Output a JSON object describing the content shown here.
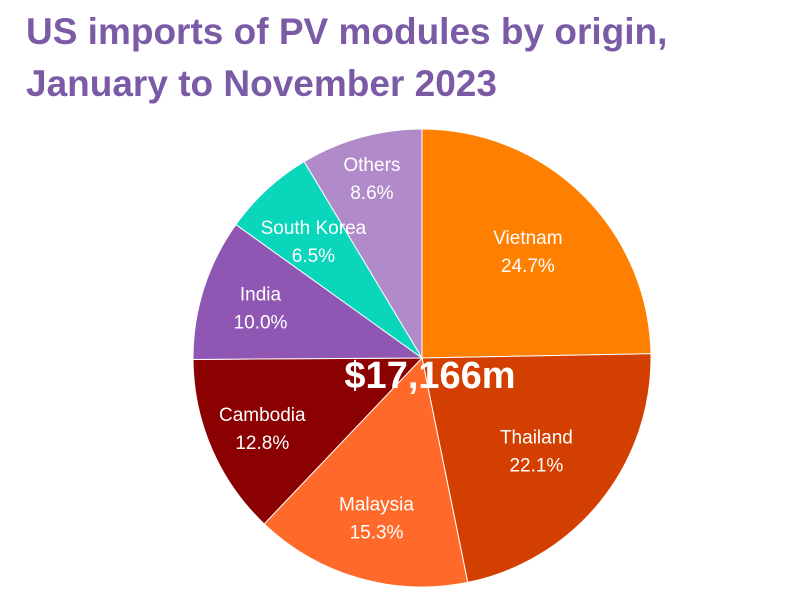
{
  "chart_data": {
    "type": "pie",
    "title_lines": [
      "US imports of PV modules by origin,",
      "January to November 2023"
    ],
    "center_label": "$17,166m",
    "slices": [
      {
        "name": "Vietnam",
        "value": 24.7,
        "label": "24.7%",
        "color": "#ff7f00",
        "text_color": "#ffffff"
      },
      {
        "name": "Thailand",
        "value": 22.1,
        "label": "22.1%",
        "color": "#d33f00",
        "text_color": "#ffffff"
      },
      {
        "name": "Malaysia",
        "value": 15.3,
        "label": "15.3%",
        "color": "#ff6a2a",
        "text_color": "#ffffff"
      },
      {
        "name": "Cambodia",
        "value": 12.8,
        "label": "12.8%",
        "color": "#8b0000",
        "text_color": "#ffffff"
      },
      {
        "name": "India",
        "value": 10.0,
        "label": "10.0%",
        "color": "#8f57b3",
        "text_color": "#ffffff"
      },
      {
        "name": "South Korea",
        "value": 6.5,
        "label": "6.5%",
        "color": "#0ad6bb",
        "text_color": "#ffffff"
      },
      {
        "name": "Others",
        "value": 8.6,
        "label": "8.6%",
        "color": "#b18ac9",
        "text_color": "#ffffff"
      }
    ]
  }
}
